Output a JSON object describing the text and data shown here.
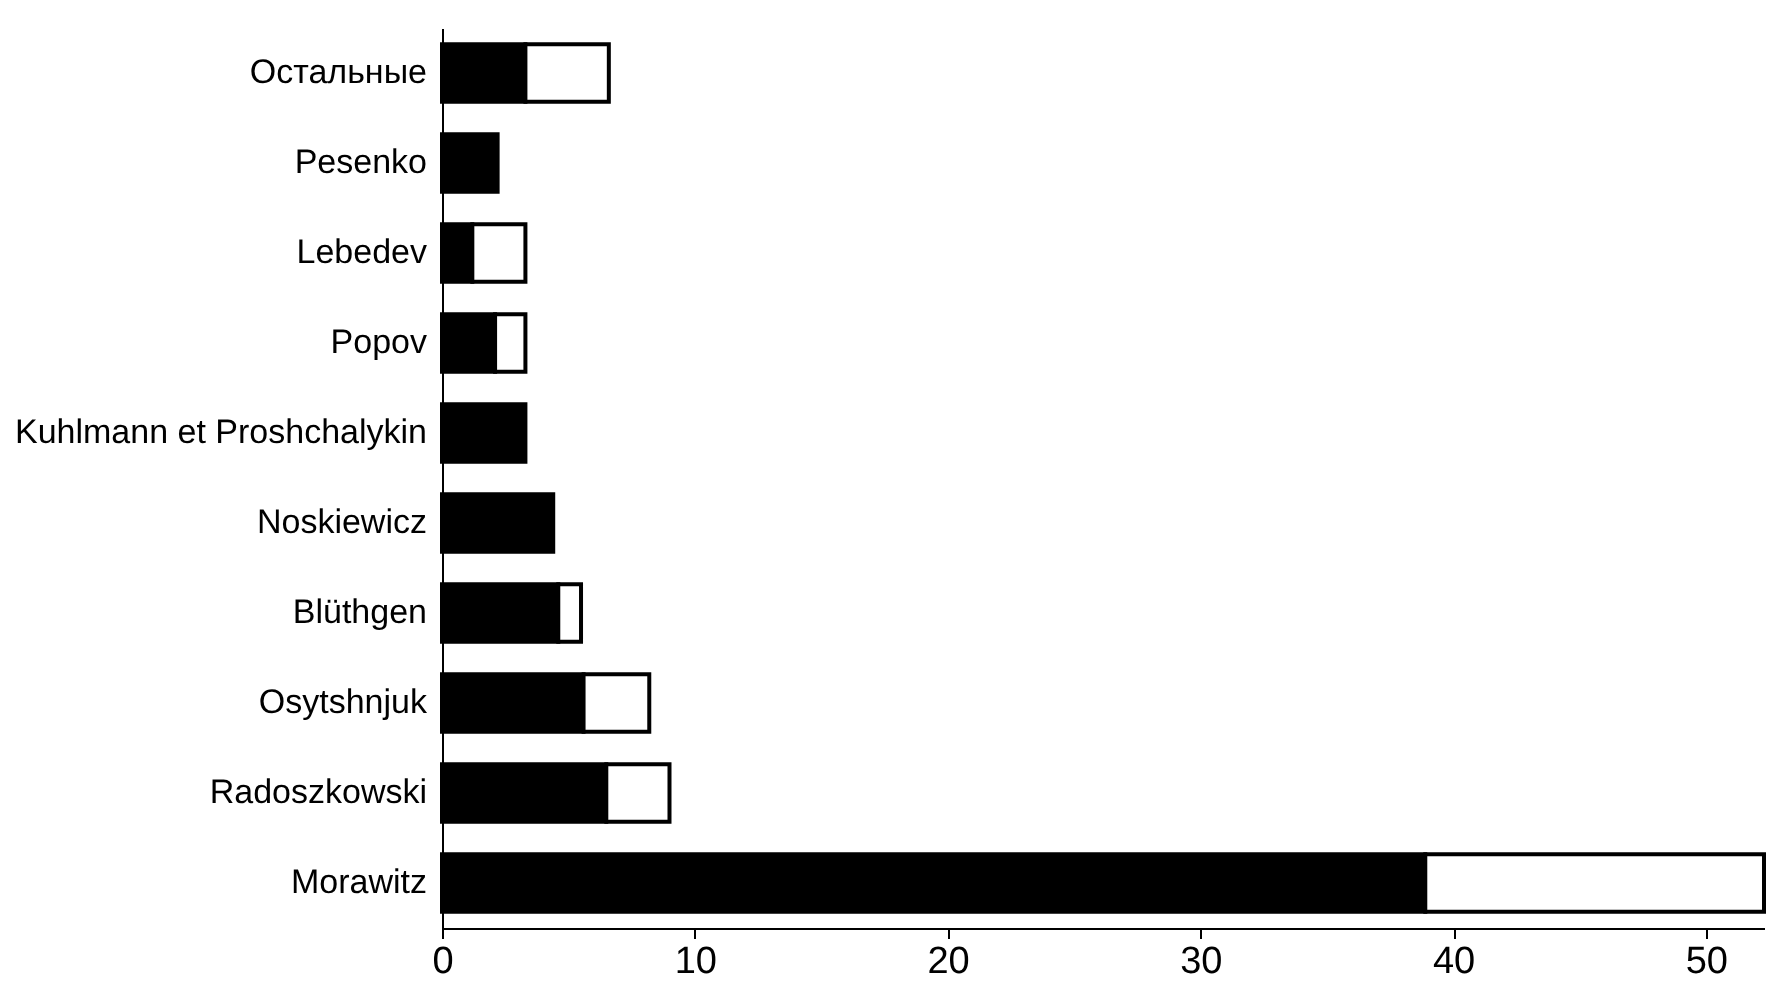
{
  "chart_data": {
    "type": "bar",
    "orientation": "horizontal",
    "stacked": true,
    "categories": [
      "Остальные",
      "Pesenko",
      "Lebedev",
      "Popov",
      "Kuhlmann et Proshchalykin",
      "Noskiewicz",
      "Blüthgen",
      "Osytshnjuk",
      "Radoszkowski",
      "Morawitz"
    ],
    "series": [
      {
        "color": "#000000",
        "values": [
          3.3,
          2.2,
          1.2,
          2.1,
          3.3,
          4.4,
          4.6,
          5.6,
          6.5,
          38.9
        ]
      },
      {
        "color": "#ffffff",
        "values": [
          3.3,
          null,
          2.1,
          1.2,
          null,
          null,
          0.9,
          2.6,
          2.5,
          13.4
        ]
      }
    ],
    "xlim": [
      0,
      52.3
    ],
    "xticks": [
      0,
      10,
      20,
      30,
      40,
      50
    ],
    "grid": false,
    "legend": false
  }
}
